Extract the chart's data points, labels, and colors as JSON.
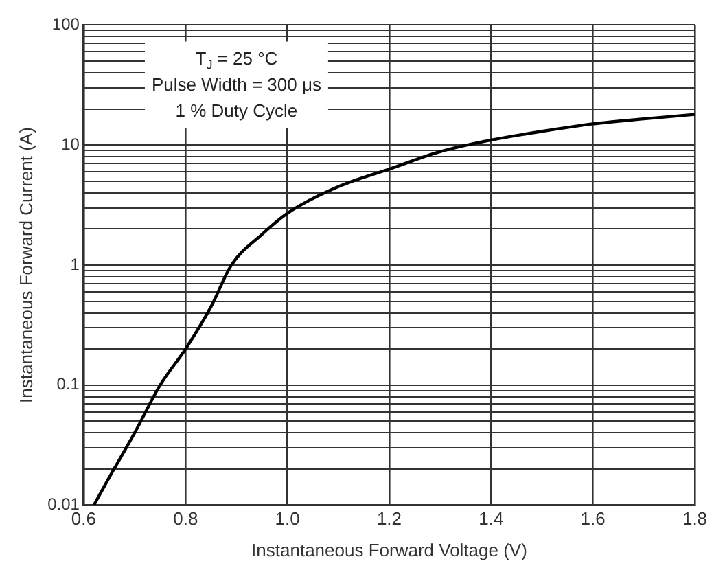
{
  "chart_data": {
    "type": "line",
    "xlabel": "Instantaneous Forward Voltage (V)",
    "ylabel": "Instantaneous Forward Current (A)",
    "x": [
      0.62,
      0.65,
      0.7,
      0.75,
      0.8,
      0.85,
      0.89,
      0.95,
      1.0,
      1.1,
      1.2,
      1.3,
      1.4,
      1.5,
      1.6,
      1.7,
      1.8
    ],
    "series": [
      {
        "color": "#000000",
        "values": [
          0.01,
          0.017,
          0.04,
          0.1,
          0.2,
          0.45,
          1,
          1.8,
          2.7,
          4.5,
          6.3,
          8.8,
          11,
          13,
          15,
          16.5,
          18
        ]
      }
    ],
    "xlim": [
      0.6,
      1.8
    ],
    "xticks": [
      {
        "value": 0.6,
        "label": "0.6"
      },
      {
        "value": 0.8,
        "label": "0.8"
      },
      {
        "value": 1.0,
        "label": "1.0"
      },
      {
        "value": 1.2,
        "label": "1.2"
      },
      {
        "value": 1.4,
        "label": "1.4"
      },
      {
        "value": 1.6,
        "label": "1.6"
      },
      {
        "value": 1.8,
        "label": "1.8"
      }
    ],
    "ylim": [
      0.01,
      100
    ],
    "log": true,
    "yticks": [
      0.01,
      {
        "value": 0.02,
        "label": null
      },
      {
        "value": 0.03,
        "label": null
      },
      {
        "value": 0.04,
        "label": null
      },
      {
        "value": 0.05,
        "label": null
      },
      {
        "value": 0.06,
        "label": null
      },
      {
        "value": 0.07,
        "label": null
      },
      {
        "value": 0.08,
        "label": null
      },
      {
        "value": 0.09,
        "label": null
      },
      0.1,
      {
        "value": 0.2,
        "label": null
      },
      {
        "value": 0.3,
        "label": null
      },
      {
        "value": 0.4,
        "label": null
      },
      {
        "value": 0.5,
        "label": null
      },
      {
        "value": 0.6,
        "label": null
      },
      {
        "value": 0.7,
        "label": null
      },
      {
        "value": 0.8,
        "label": null
      },
      {
        "value": 0.9,
        "label": null
      },
      1,
      {
        "value": 2,
        "label": null
      },
      {
        "value": 3,
        "label": null
      },
      {
        "value": 4,
        "label": null
      },
      {
        "value": 5,
        "label": null
      },
      {
        "value": 6,
        "label": null
      },
      {
        "value": 7,
        "label": null
      },
      {
        "value": 8,
        "label": null
      },
      {
        "value": 9,
        "label": null
      },
      10,
      {
        "value": 20,
        "label": null
      },
      {
        "value": 30,
        "label": null
      },
      {
        "value": 40,
        "label": null
      },
      {
        "value": 50,
        "label": null
      },
      {
        "value": 60,
        "label": null
      },
      {
        "value": 70,
        "label": null
      },
      {
        "value": 80,
        "label": null
      },
      {
        "value": 90,
        "label": null
      },
      100
    ],
    "grid": true,
    "legend": false,
    "marker": "none",
    "line_style": "solid",
    "annotations": [
      "T$_{J}$ = 25 °C",
      "Pulse Width = 300 μs",
      "1 % Duty Cycle"
    ]
  }
}
